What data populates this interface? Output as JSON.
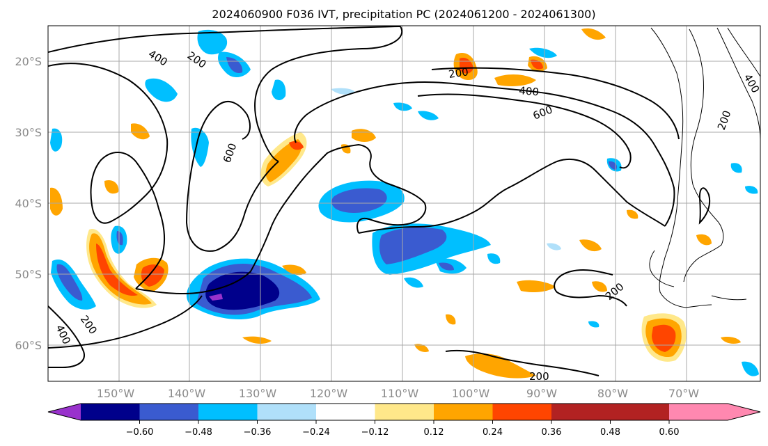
{
  "title": "2024060900 F036 IVT, precipitation PC (2024061200 - 2024061300)",
  "latitude_labels": [
    "20°S",
    "30°S",
    "40°S",
    "50°S",
    "60°S"
  ],
  "longitude_labels": [
    "150°W",
    "140°W",
    "130°W",
    "120°W",
    "110°W",
    "100°W",
    "90°W",
    "80°W",
    "70°W"
  ],
  "ivt_contour_labels": [
    "400",
    "200",
    "600",
    "200",
    "400",
    "600",
    "200",
    "400",
    "200",
    "400",
    "200",
    "200"
  ],
  "colorbar": {
    "tick_labels": [
      "−0.60",
      "−0.48",
      "−0.36",
      "−0.24",
      "−0.12",
      "0.12",
      "0.24",
      "0.36",
      "0.48",
      "0.60"
    ],
    "colors": [
      "#9932cc",
      "#00008b",
      "#3a5bd0",
      "#00bfff",
      "#b0e0fa",
      "#ffffff",
      "#ffe88a",
      "#ffa500",
      "#ff4500",
      "#b22222",
      "#ff88b0"
    ]
  }
}
